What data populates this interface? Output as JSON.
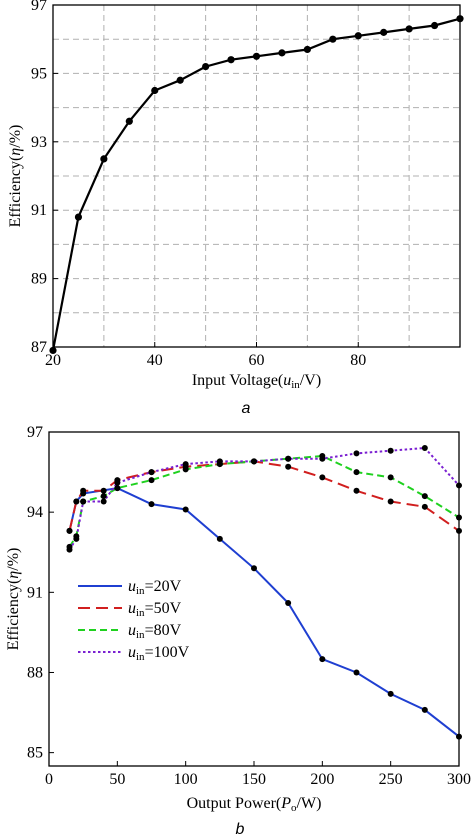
{
  "chart_data": [
    {
      "type": "line",
      "caption": "a",
      "xlabel_prefix": "Input Voltage(",
      "xlabel_var": "u",
      "xlabel_sub": "in",
      "xlabel_suffix": "/V)",
      "ylabel_prefix": "Efficiency(",
      "ylabel_var": "η",
      "ylabel_suffix": "/%)",
      "xlim": [
        20,
        100
      ],
      "ylim": [
        87,
        97
      ],
      "xticks": [
        20,
        40,
        60,
        80
      ],
      "yticks": [
        87,
        89,
        91,
        93,
        95,
        97
      ],
      "x_gridlines": [
        30,
        40,
        50,
        60,
        70,
        80,
        90
      ],
      "y_gridlines": [
        88,
        89,
        90,
        91,
        92,
        93,
        94,
        95,
        96
      ],
      "grid": true,
      "series": [
        {
          "color": "#000000",
          "x": [
            20,
            25,
            30,
            35,
            40,
            45,
            50,
            55,
            60,
            65,
            70,
            75,
            80,
            85,
            90,
            95,
            100
          ],
          "y": [
            86.9,
            90.8,
            92.5,
            93.6,
            94.5,
            94.8,
            95.2,
            95.4,
            95.5,
            95.6,
            95.7,
            96.0,
            96.1,
            96.2,
            96.3,
            96.4,
            96.6
          ]
        }
      ]
    },
    {
      "type": "line",
      "caption": "b",
      "xlabel_prefix": "Output Power(",
      "xlabel_var": "P",
      "xlabel_sub": "o",
      "xlabel_suffix": "/W)",
      "ylabel_prefix": "Efficiency(",
      "ylabel_var": "η",
      "ylabel_suffix": "/%)",
      "xlim": [
        0,
        300
      ],
      "ylim": [
        84.5,
        97
      ],
      "xticks": [
        0,
        50,
        100,
        150,
        200,
        250,
        300
      ],
      "yticks": [
        85,
        88,
        91,
        94,
        97
      ],
      "grid": false,
      "legend_position": "lower-left",
      "series": [
        {
          "name_var": "u",
          "name_sub": "in",
          "name_value": "=20V",
          "color": "#1f3fd1",
          "dash": "solid",
          "x": [
            15,
            20,
            25,
            50,
            75,
            100,
            125,
            150,
            175,
            200,
            225,
            250,
            275,
            300
          ],
          "y": [
            93.3,
            94.4,
            94.7,
            94.9,
            94.3,
            94.1,
            93.0,
            91.9,
            90.6,
            88.5,
            88.0,
            87.2,
            86.6,
            85.6
          ]
        },
        {
          "name_var": "u",
          "name_sub": "in",
          "name_value": "=50V",
          "color": "#d11f1f",
          "dash": "long",
          "x": [
            15,
            20,
            25,
            40,
            50,
            75,
            100,
            125,
            150,
            175,
            200,
            225,
            250,
            275,
            300
          ],
          "y": [
            93.3,
            94.4,
            94.8,
            94.8,
            95.2,
            95.5,
            95.7,
            95.8,
            95.9,
            95.7,
            95.3,
            94.8,
            94.4,
            94.2,
            93.3
          ]
        },
        {
          "name_var": "u",
          "name_sub": "in",
          "name_value": "=80V",
          "color": "#1fd11f",
          "dash": "medium",
          "x": [
            15,
            20,
            25,
            40,
            50,
            75,
            100,
            125,
            150,
            175,
            200,
            225,
            250,
            275,
            300
          ],
          "y": [
            92.7,
            93.1,
            94.4,
            94.6,
            94.9,
            95.2,
            95.6,
            95.8,
            95.9,
            96.0,
            96.1,
            95.5,
            95.3,
            94.6,
            93.8
          ]
        },
        {
          "name_var": "u",
          "name_sub": "in",
          "name_value": "=100V",
          "color": "#7a1fd1",
          "dash": "dotted",
          "x": [
            15,
            20,
            25,
            40,
            50,
            75,
            100,
            125,
            150,
            175,
            200,
            225,
            250,
            275,
            300
          ],
          "y": [
            92.6,
            93.0,
            94.4,
            94.4,
            95.1,
            95.5,
            95.8,
            95.9,
            95.9,
            96.0,
            96.0,
            96.2,
            96.3,
            96.4,
            95.0
          ]
        }
      ]
    }
  ]
}
